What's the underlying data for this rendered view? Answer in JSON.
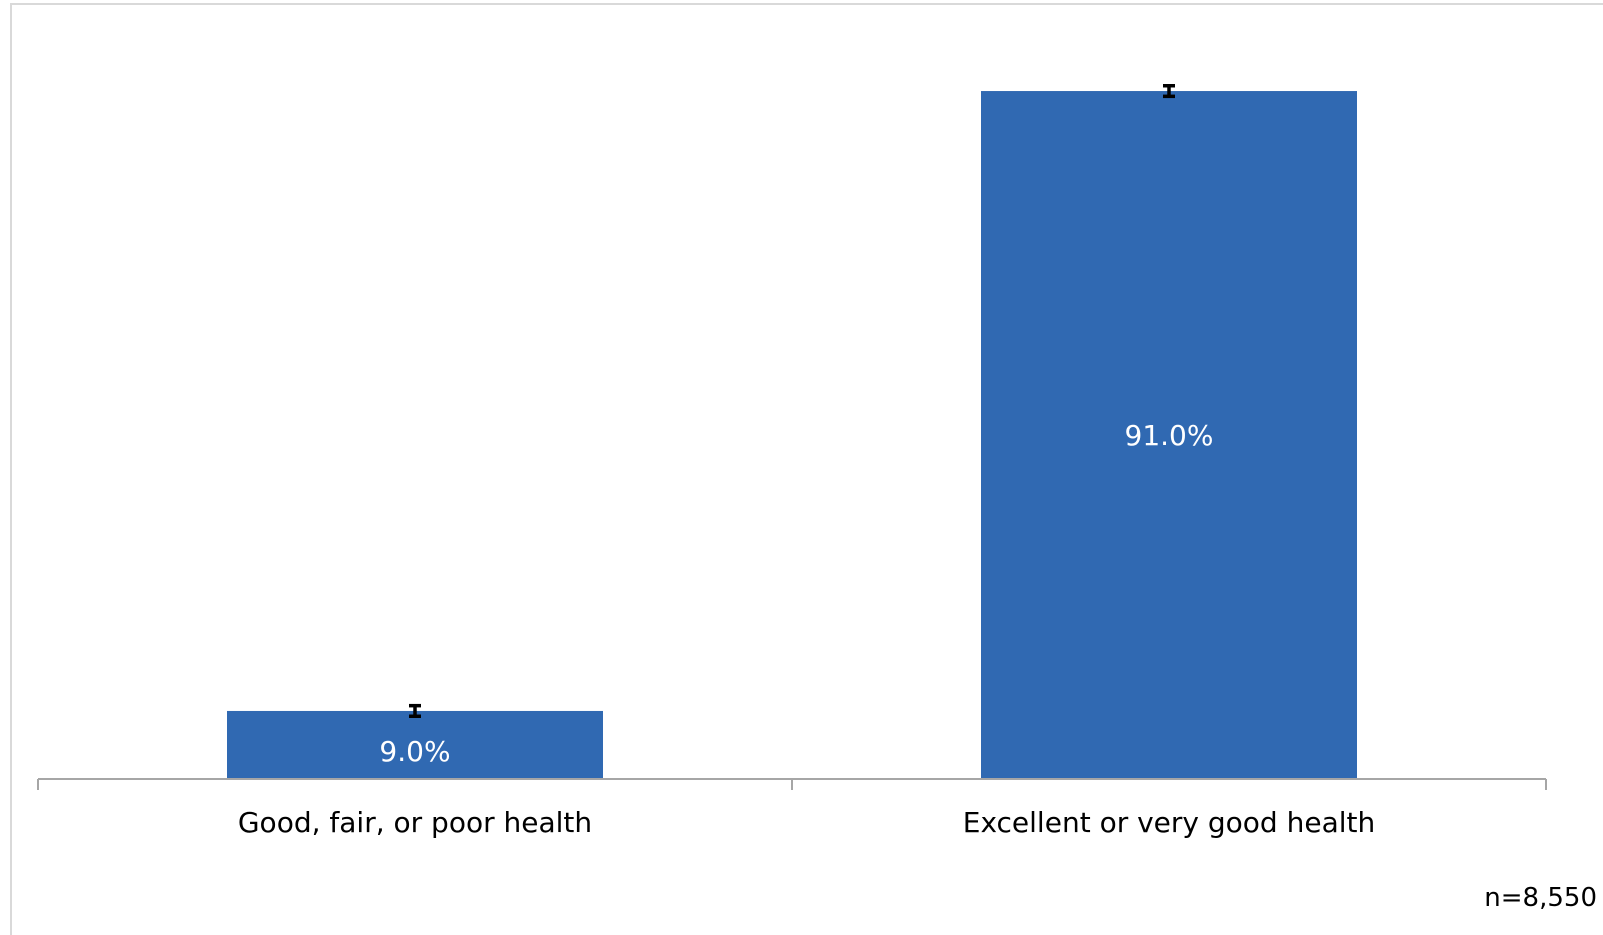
{
  "chart_data": {
    "type": "bar",
    "categories": [
      "Good, fair, or poor health",
      "Excellent or very good health"
    ],
    "values": [
      9.0,
      91.0
    ],
    "data_labels": [
      "9.0%",
      "91.0%"
    ],
    "error_bars": [
      {
        "low": 8.3,
        "high": 9.7
      },
      {
        "low": 90.3,
        "high": 91.7
      }
    ],
    "title": "",
    "xlabel": "",
    "ylabel": "",
    "ylim": [
      0,
      100
    ],
    "grid": false,
    "legend": "none",
    "bar_color": "#3069b2",
    "error_bar_color": "#000000",
    "note": "n=8,550"
  }
}
